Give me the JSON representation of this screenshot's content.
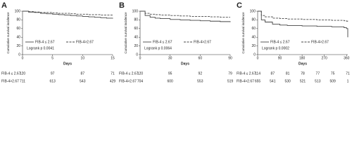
{
  "chart_data": [
    {
      "type": "line",
      "panel_label": "A",
      "ylabel": "Cumulative survival incidence",
      "xlabel": "Days",
      "xlim": [
        0,
        15
      ],
      "xticks": [
        0,
        5,
        10,
        15
      ],
      "ylim": [
        0,
        100
      ],
      "yticks": [
        0,
        20,
        40,
        60,
        80,
        100
      ],
      "annotation": "Logrank p 0.0041",
      "series": [
        {
          "name": "FIB-4 ≤ 2.67",
          "color": "#444444",
          "dashed": false,
          "x": [
            0,
            1,
            2,
            3,
            4,
            5,
            6,
            7,
            8,
            9,
            10,
            11,
            12,
            13,
            14,
            15
          ],
          "values": [
            100,
            98,
            97,
            95,
            94,
            93,
            92,
            91,
            90,
            89,
            88,
            87,
            86,
            85,
            84,
            83
          ],
          "at_risk": [
            120,
            97,
            87,
            71
          ]
        },
        {
          "name": "FIB-4>2.67",
          "color": "#444444",
          "dashed": true,
          "x": [
            0,
            1,
            2,
            3,
            4,
            5,
            6,
            7,
            8,
            9,
            10,
            11,
            12,
            13,
            14,
            15
          ],
          "values": [
            100,
            99,
            98,
            97,
            97,
            96,
            95,
            95,
            94,
            93,
            93,
            92,
            92,
            91,
            91,
            90
          ],
          "at_risk": [
            711,
            613,
            543,
            429
          ]
        }
      ]
    },
    {
      "type": "line",
      "panel_label": "B",
      "ylabel": "Cumulative survival incidence",
      "xlabel": "Days",
      "xlim": [
        0,
        90
      ],
      "xticks": [
        0,
        30,
        60,
        90
      ],
      "ylim": [
        0,
        100
      ],
      "yticks": [
        0,
        20,
        40,
        60,
        80,
        100
      ],
      "annotation": "Logrank p 0.0064",
      "series": [
        {
          "name": "FIB-4 ≤ 2.67",
          "color": "#444444",
          "dashed": false,
          "x": [
            0,
            5,
            10,
            15,
            20,
            30,
            40,
            50,
            60,
            70,
            80,
            90
          ],
          "values": [
            100,
            90,
            86,
            84,
            83,
            81,
            80,
            79,
            78,
            77,
            76,
            75
          ],
          "at_risk": [
            120,
            95,
            92,
            79
          ]
        },
        {
          "name": "FIB-4>2.67",
          "color": "#444444",
          "dashed": true,
          "x": [
            0,
            5,
            10,
            15,
            20,
            30,
            40,
            50,
            60,
            70,
            80,
            90
          ],
          "values": [
            100,
            95,
            93,
            92,
            91,
            90,
            89,
            88,
            88,
            87,
            86,
            86
          ],
          "at_risk": [
            704,
            600,
            553,
            519
          ]
        }
      ]
    },
    {
      "type": "line",
      "panel_label": "C",
      "ylabel": "Cumulative survival incidence",
      "xlabel": "Days",
      "xlim": [
        0,
        365
      ],
      "xticks": [
        0,
        90,
        180,
        270,
        360
      ],
      "ylim": [
        0,
        100
      ],
      "yticks": [
        0,
        20,
        40,
        60,
        80,
        100
      ],
      "annotation": "Logrank p 0.0002",
      "series": [
        {
          "name": "FIB-4 ≤ 2.67",
          "color": "#444444",
          "dashed": false,
          "x": [
            0,
            15,
            30,
            60,
            90,
            120,
            180,
            240,
            300,
            350,
            360,
            365
          ],
          "values": [
            100,
            80,
            75,
            70,
            68,
            67,
            66,
            65,
            64,
            62,
            60,
            40
          ],
          "at_risk": [
            114,
            87,
            81,
            78,
            77,
            75,
            71
          ]
        },
        {
          "name": "FIB-4>2.67",
          "color": "#444444",
          "dashed": true,
          "x": [
            0,
            15,
            30,
            60,
            90,
            120,
            180,
            240,
            300,
            350,
            360,
            365
          ],
          "values": [
            100,
            90,
            87,
            84,
            83,
            82,
            81,
            80,
            79,
            78,
            77,
            76
          ],
          "at_risk": [
            655,
            541,
            530,
            521,
            513,
            509,
            1
          ]
        }
      ]
    }
  ]
}
